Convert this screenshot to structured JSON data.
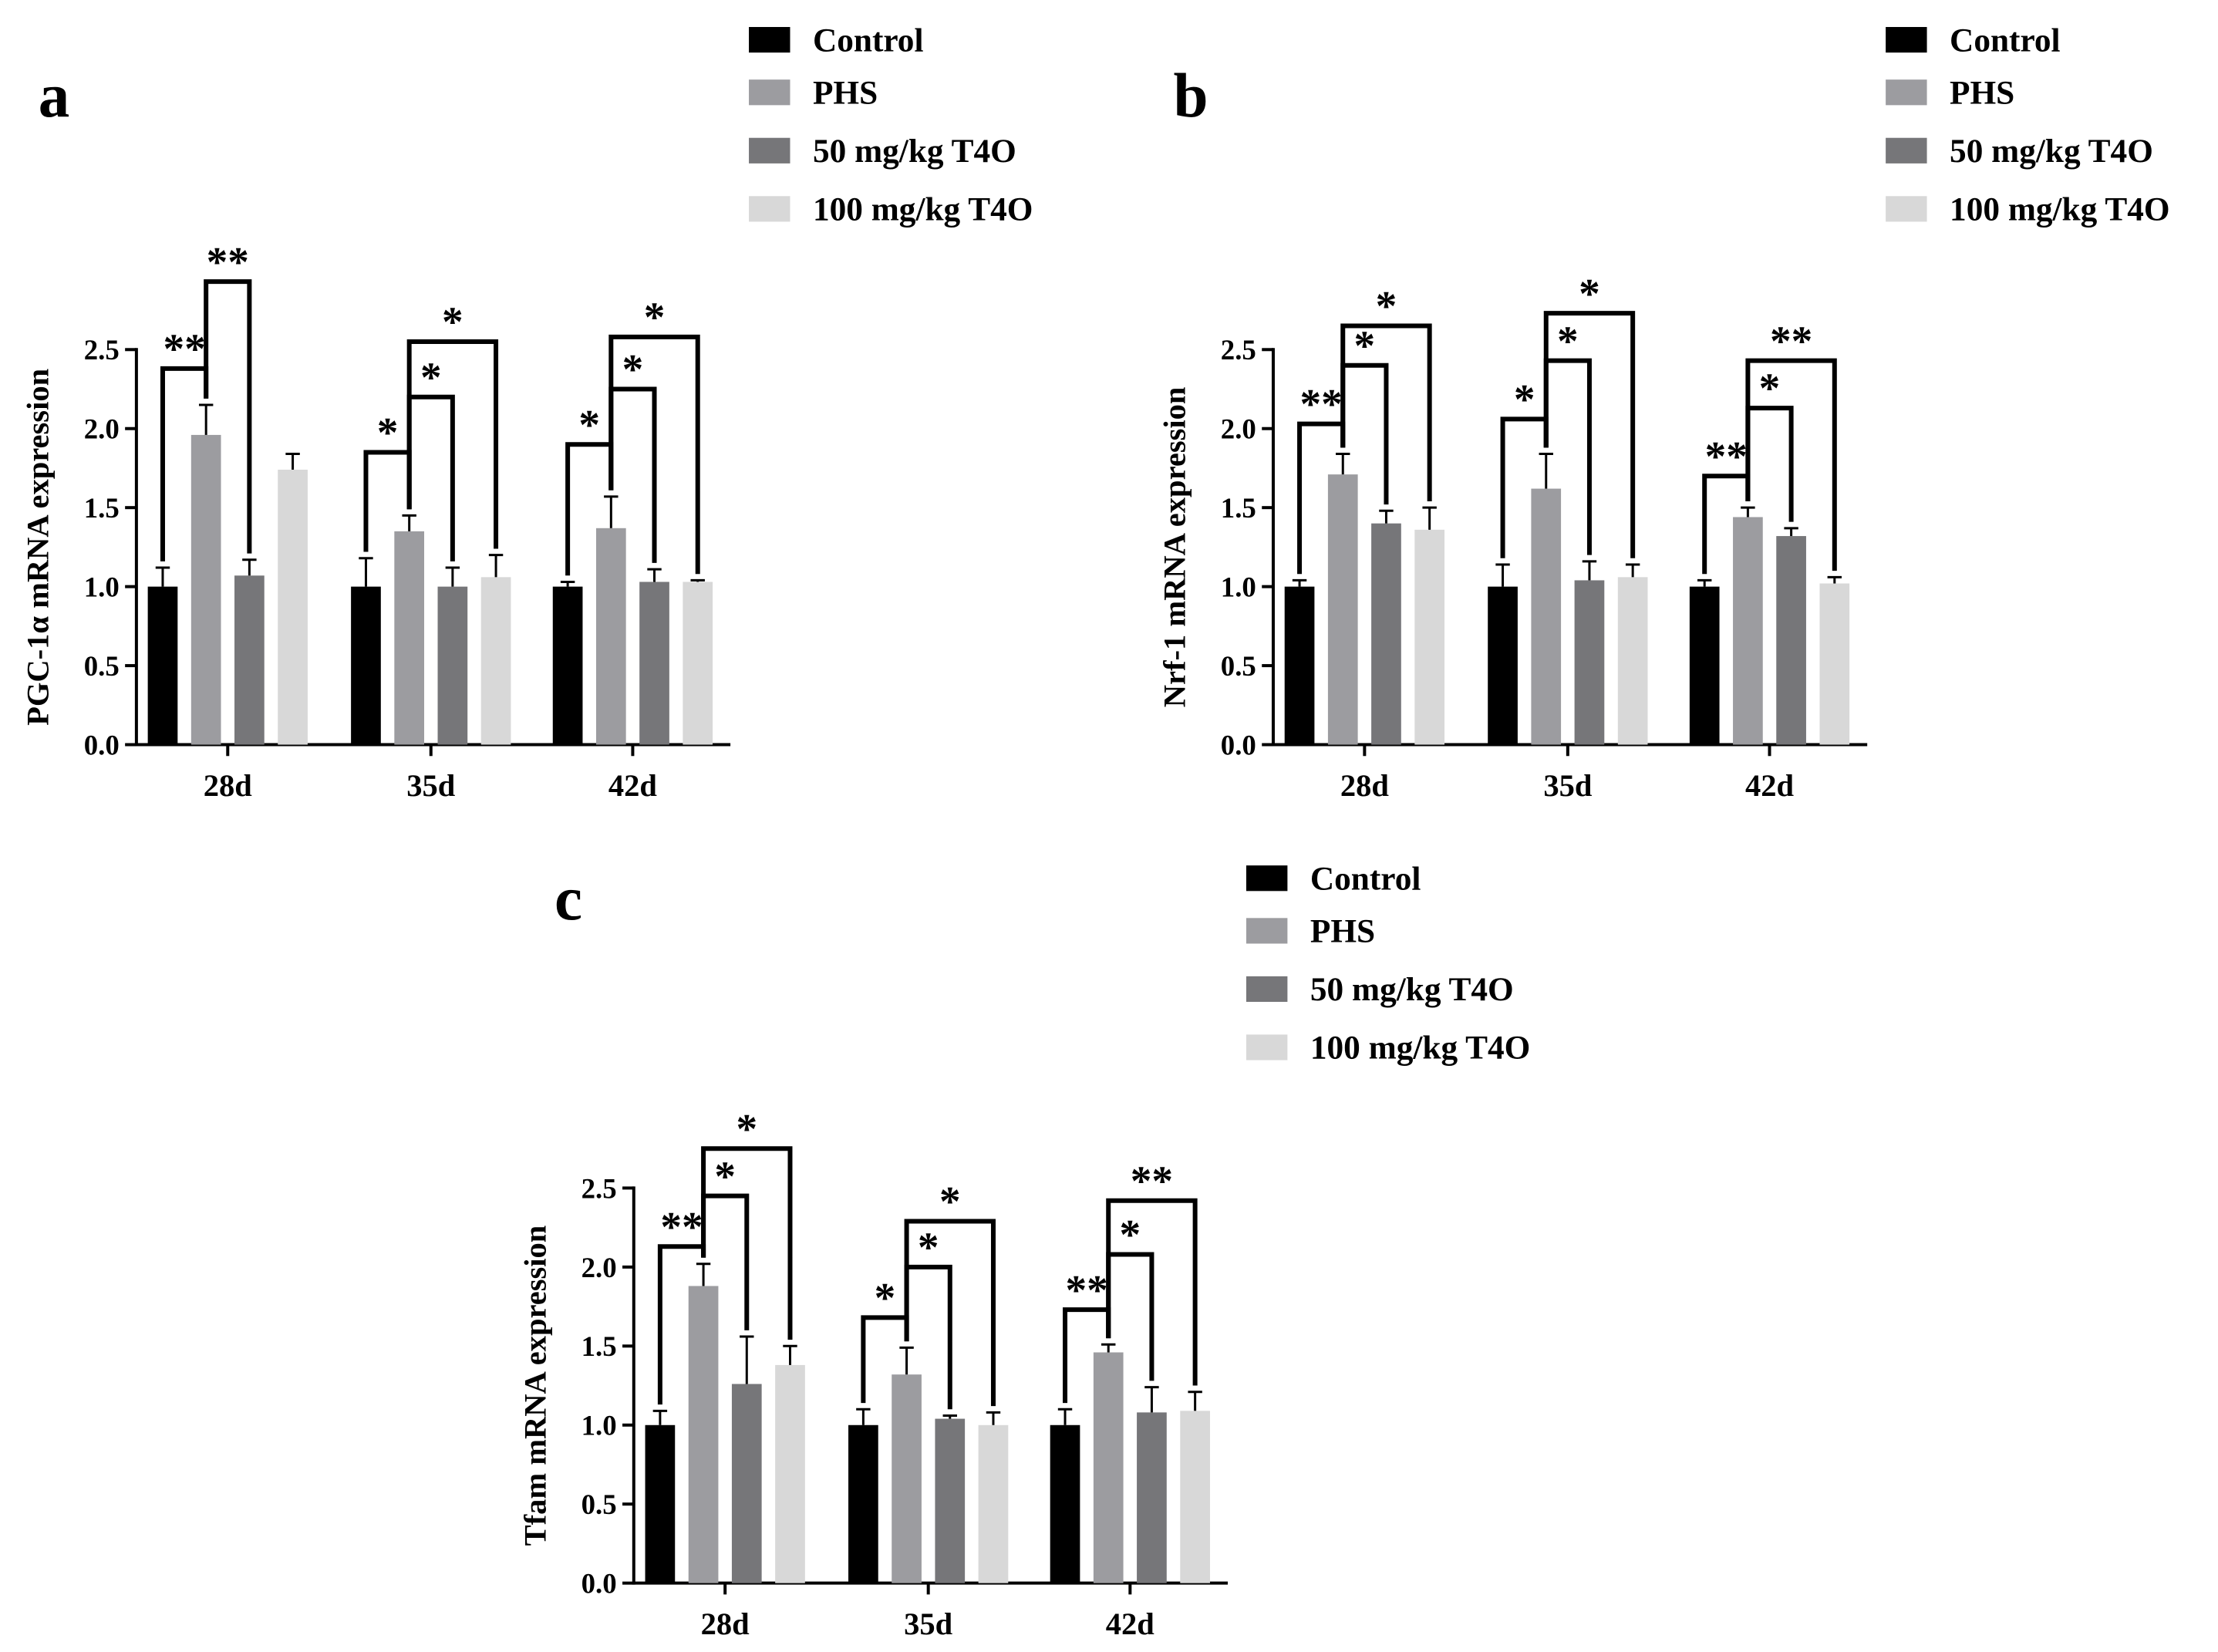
{
  "colors": {
    "Control": "#000000",
    "PHS": "#9c9ca0",
    "50 mg/kg T4O": "#767679",
    "100 mg/kg T4O": "#d8d8d8"
  },
  "chart_data": [
    {
      "panel_label": "a",
      "type": "bar",
      "ylabel": "PGC-1α mRNA expression",
      "xlabel": "",
      "ylim": [
        0,
        2.5
      ],
      "yticks": [
        "0.0",
        "0.5",
        "1.0",
        "1.5",
        "2.0",
        "2.5"
      ],
      "categories": [
        "28d",
        "35d",
        "42d"
      ],
      "series": [
        {
          "name": "Control",
          "values": [
            1.0,
            1.0,
            1.0
          ],
          "errors": [
            0.12,
            0.18,
            0.03
          ]
        },
        {
          "name": "PHS",
          "values": [
            1.96,
            1.35,
            1.37
          ],
          "errors": [
            0.19,
            0.1,
            0.2
          ]
        },
        {
          "name": "50 mg/kg T4O",
          "values": [
            1.07,
            1.0,
            1.03
          ],
          "errors": [
            0.1,
            0.12,
            0.08
          ]
        },
        {
          "name": "100 mg/kg T4O",
          "values": [
            1.74,
            1.06,
            1.03
          ],
          "errors": [
            0.1,
            0.14,
            0.01
          ]
        }
      ],
      "significance": [
        {
          "group": 0,
          "from": 0,
          "to": 1,
          "label": "**",
          "level": 2.38
        },
        {
          "group": 0,
          "from": 1,
          "to": 2,
          "label": "**",
          "level": 2.93
        },
        {
          "group": 1,
          "from": 0,
          "to": 1,
          "label": "*",
          "level": 1.85
        },
        {
          "group": 1,
          "from": 1,
          "to": 2,
          "label": "*",
          "level": 2.2
        },
        {
          "group": 1,
          "from": 1,
          "to": 3,
          "label": "*",
          "level": 2.55
        },
        {
          "group": 2,
          "from": 0,
          "to": 1,
          "label": "*",
          "level": 1.9
        },
        {
          "group": 2,
          "from": 1,
          "to": 2,
          "label": "*",
          "level": 2.25
        },
        {
          "group": 2,
          "from": 1,
          "to": 3,
          "label": "*",
          "level": 2.58
        }
      ],
      "legend_position": "top-right"
    },
    {
      "panel_label": "b",
      "type": "bar",
      "ylabel": "Nrf-1 mRNA expression",
      "xlabel": "",
      "ylim": [
        0,
        2.5
      ],
      "yticks": [
        "0.0",
        "0.5",
        "1.0",
        "1.5",
        "2.0",
        "2.5"
      ],
      "categories": [
        "28d",
        "35d",
        "42d"
      ],
      "series": [
        {
          "name": "Control",
          "values": [
            1.0,
            1.0,
            1.0
          ],
          "errors": [
            0.04,
            0.14,
            0.04
          ]
        },
        {
          "name": "PHS",
          "values": [
            1.71,
            1.62,
            1.44
          ],
          "errors": [
            0.13,
            0.22,
            0.06
          ]
        },
        {
          "name": "50 mg/kg T4O",
          "values": [
            1.4,
            1.04,
            1.32
          ],
          "errors": [
            0.08,
            0.12,
            0.05
          ]
        },
        {
          "name": "100 mg/kg T4O",
          "values": [
            1.36,
            1.06,
            1.02
          ],
          "errors": [
            0.14,
            0.08,
            0.04
          ]
        }
      ],
      "significance": [
        {
          "group": 0,
          "from": 0,
          "to": 1,
          "label": "**",
          "level": 2.03
        },
        {
          "group": 0,
          "from": 1,
          "to": 2,
          "label": "*",
          "level": 2.4
        },
        {
          "group": 0,
          "from": 1,
          "to": 3,
          "label": "*",
          "level": 2.65
        },
        {
          "group": 1,
          "from": 0,
          "to": 1,
          "label": "*",
          "level": 2.06
        },
        {
          "group": 1,
          "from": 1,
          "to": 2,
          "label": "*",
          "level": 2.43
        },
        {
          "group": 1,
          "from": 1,
          "to": 3,
          "label": "*",
          "level": 2.73
        },
        {
          "group": 2,
          "from": 0,
          "to": 1,
          "label": "**",
          "level": 1.7
        },
        {
          "group": 2,
          "from": 1,
          "to": 2,
          "label": "*",
          "level": 2.13
        },
        {
          "group": 2,
          "from": 1,
          "to": 3,
          "label": "**",
          "level": 2.43
        }
      ],
      "legend_position": "top-right"
    },
    {
      "panel_label": "c",
      "type": "bar",
      "ylabel": "Tfam mRNA expression",
      "xlabel": "",
      "ylim": [
        0,
        2.5
      ],
      "yticks": [
        "0.0",
        "0.5",
        "1.0",
        "1.5",
        "2.0",
        "2.5"
      ],
      "categories": [
        "28d",
        "35d",
        "42d"
      ],
      "series": [
        {
          "name": "Control",
          "values": [
            1.0,
            1.0,
            1.0
          ],
          "errors": [
            0.09,
            0.1,
            0.1
          ]
        },
        {
          "name": "PHS",
          "values": [
            1.88,
            1.32,
            1.46
          ],
          "errors": [
            0.14,
            0.17,
            0.05
          ]
        },
        {
          "name": "50 mg/kg T4O",
          "values": [
            1.26,
            1.04,
            1.08
          ],
          "errors": [
            0.3,
            0.02,
            0.16
          ]
        },
        {
          "name": "100 mg/kg T4O",
          "values": [
            1.38,
            1.0,
            1.09
          ],
          "errors": [
            0.12,
            0.08,
            0.12
          ]
        }
      ],
      "significance": [
        {
          "group": 0,
          "from": 0,
          "to": 1,
          "label": "**",
          "level": 2.13
        },
        {
          "group": 0,
          "from": 1,
          "to": 2,
          "label": "*",
          "level": 2.45
        },
        {
          "group": 0,
          "from": 1,
          "to": 3,
          "label": "*",
          "level": 2.75
        },
        {
          "group": 1,
          "from": 0,
          "to": 1,
          "label": "*",
          "level": 1.68
        },
        {
          "group": 1,
          "from": 1,
          "to": 2,
          "label": "*",
          "level": 2.0
        },
        {
          "group": 1,
          "from": 1,
          "to": 3,
          "label": "*",
          "level": 2.29
        },
        {
          "group": 2,
          "from": 0,
          "to": 1,
          "label": "**",
          "level": 1.73
        },
        {
          "group": 2,
          "from": 1,
          "to": 2,
          "label": "*",
          "level": 2.08
        },
        {
          "group": 2,
          "from": 1,
          "to": 3,
          "label": "**",
          "level": 2.42
        }
      ],
      "legend_position": "top-right"
    }
  ]
}
